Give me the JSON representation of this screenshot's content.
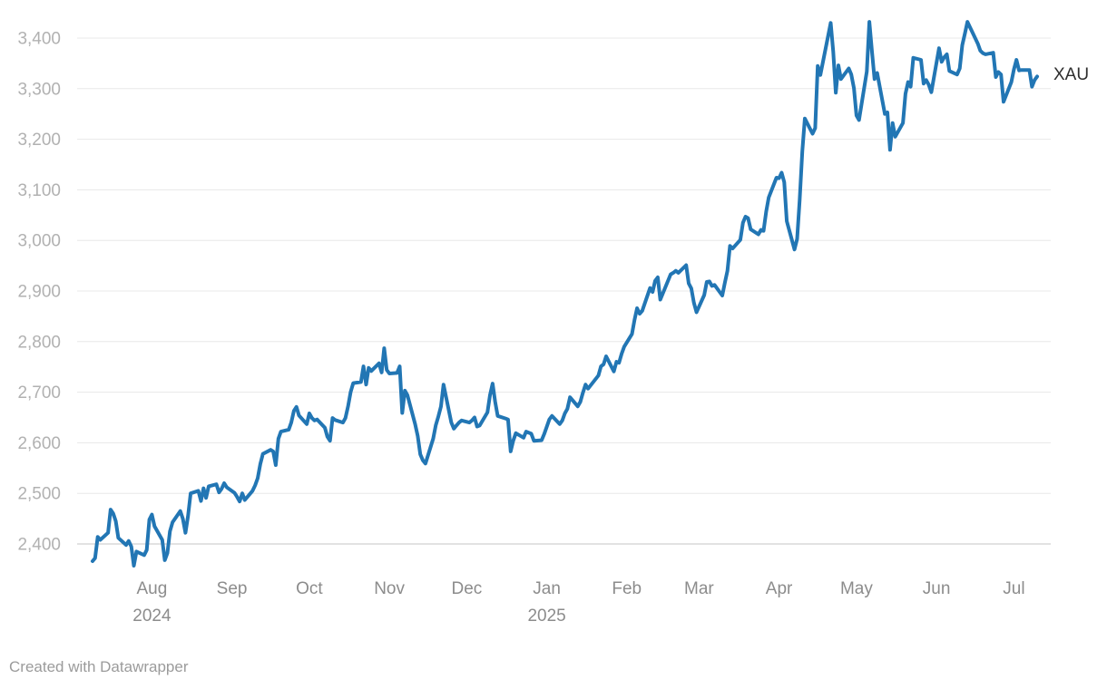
{
  "chart_header": {
    "series_label": "XAU"
  },
  "footer": {
    "credit": "Created with Datawrapper"
  },
  "style": {
    "line_color": "#2276b4",
    "grid_color": "#e8e8e8",
    "baseline_color": "#c6c6c6",
    "ytick_color": "#b1b1b1",
    "xtick_color": "#8c8c8c",
    "series_label_color": "#2d2d2d",
    "footer_color": "#9b9b9b"
  },
  "chart_data": {
    "type": "line",
    "title": "",
    "xlabel": "",
    "ylabel": "",
    "grid": "horizontal",
    "legend_position": "end-of-line",
    "ylim": [
      2350,
      3450
    ],
    "yticks": [
      2400,
      2500,
      2600,
      2700,
      2800,
      2900,
      3000,
      3100,
      3200,
      3300,
      3400
    ],
    "x_range": [
      "2024-07-09",
      "2025-07-10"
    ],
    "month_ticks": [
      {
        "label": "Aug",
        "date": "2024-08-01",
        "year": "2024"
      },
      {
        "label": "Sep",
        "date": "2024-09-01"
      },
      {
        "label": "Oct",
        "date": "2024-10-01"
      },
      {
        "label": "Nov",
        "date": "2024-11-01"
      },
      {
        "label": "Dec",
        "date": "2024-12-01"
      },
      {
        "label": "Jan",
        "date": "2025-01-01",
        "year": "2025"
      },
      {
        "label": "Feb",
        "date": "2025-02-01"
      },
      {
        "label": "Mar",
        "date": "2025-03-01"
      },
      {
        "label": "Apr",
        "date": "2025-04-01"
      },
      {
        "label": "May",
        "date": "2025-05-01"
      },
      {
        "label": "Jun",
        "date": "2025-06-01"
      },
      {
        "label": "Jul",
        "date": "2025-07-01"
      }
    ],
    "series": [
      {
        "name": "XAU",
        "points": [
          [
            "2024-07-09",
            2366
          ],
          [
            "2024-07-10",
            2372
          ],
          [
            "2024-07-11",
            2414
          ],
          [
            "2024-07-12",
            2408
          ],
          [
            "2024-07-15",
            2422
          ],
          [
            "2024-07-16",
            2468
          ],
          [
            "2024-07-17",
            2460
          ],
          [
            "2024-07-18",
            2445
          ],
          [
            "2024-07-19",
            2412
          ],
          [
            "2024-07-22",
            2398
          ],
          [
            "2024-07-23",
            2406
          ],
          [
            "2024-07-24",
            2395
          ],
          [
            "2024-07-25",
            2357
          ],
          [
            "2024-07-26",
            2385
          ],
          [
            "2024-07-29",
            2378
          ],
          [
            "2024-07-30",
            2388
          ],
          [
            "2024-07-31",
            2448
          ],
          [
            "2024-08-01",
            2458
          ],
          [
            "2024-08-02",
            2435
          ],
          [
            "2024-08-05",
            2408
          ],
          [
            "2024-08-06",
            2368
          ],
          [
            "2024-08-07",
            2382
          ],
          [
            "2024-08-08",
            2425
          ],
          [
            "2024-08-09",
            2443
          ],
          [
            "2024-08-12",
            2465
          ],
          [
            "2024-08-13",
            2450
          ],
          [
            "2024-08-14",
            2422
          ],
          [
            "2024-08-15",
            2455
          ],
          [
            "2024-08-16",
            2500
          ],
          [
            "2024-08-19",
            2505
          ],
          [
            "2024-08-20",
            2485
          ],
          [
            "2024-08-21",
            2510
          ],
          [
            "2024-08-22",
            2491
          ],
          [
            "2024-08-23",
            2514
          ],
          [
            "2024-08-26",
            2518
          ],
          [
            "2024-08-27",
            2502
          ],
          [
            "2024-08-28",
            2509
          ],
          [
            "2024-08-29",
            2520
          ],
          [
            "2024-08-30",
            2512
          ],
          [
            "2024-09-02",
            2501
          ],
          [
            "2024-09-03",
            2493
          ],
          [
            "2024-09-04",
            2484
          ],
          [
            "2024-09-05",
            2500
          ],
          [
            "2024-09-06",
            2487
          ],
          [
            "2024-09-09",
            2505
          ],
          [
            "2024-09-10",
            2516
          ],
          [
            "2024-09-11",
            2530
          ],
          [
            "2024-09-12",
            2558
          ],
          [
            "2024-09-13",
            2578
          ],
          [
            "2024-09-16",
            2586
          ],
          [
            "2024-09-17",
            2583
          ],
          [
            "2024-09-18",
            2556
          ],
          [
            "2024-09-19",
            2608
          ],
          [
            "2024-09-20",
            2622
          ],
          [
            "2024-09-23",
            2626
          ],
          [
            "2024-09-24",
            2640
          ],
          [
            "2024-09-25",
            2663
          ],
          [
            "2024-09-26",
            2671
          ],
          [
            "2024-09-27",
            2654
          ],
          [
            "2024-09-30",
            2637
          ],
          [
            "2024-10-01",
            2658
          ],
          [
            "2024-10-02",
            2649
          ],
          [
            "2024-10-03",
            2644
          ],
          [
            "2024-10-04",
            2646
          ],
          [
            "2024-10-07",
            2630
          ],
          [
            "2024-10-08",
            2612
          ],
          [
            "2024-10-09",
            2604
          ],
          [
            "2024-10-10",
            2649
          ],
          [
            "2024-10-11",
            2645
          ],
          [
            "2024-10-14",
            2640
          ],
          [
            "2024-10-15",
            2649
          ],
          [
            "2024-10-16",
            2672
          ],
          [
            "2024-10-17",
            2700
          ],
          [
            "2024-10-18",
            2718
          ],
          [
            "2024-10-21",
            2720
          ],
          [
            "2024-10-22",
            2751
          ],
          [
            "2024-10-23",
            2715
          ],
          [
            "2024-10-24",
            2748
          ],
          [
            "2024-10-25",
            2742
          ],
          [
            "2024-10-28",
            2757
          ],
          [
            "2024-10-29",
            2739
          ],
          [
            "2024-10-30",
            2787
          ],
          [
            "2024-10-31",
            2744
          ],
          [
            "2024-11-01",
            2737
          ],
          [
            "2024-11-04",
            2738
          ],
          [
            "2024-11-05",
            2751
          ],
          [
            "2024-11-06",
            2659
          ],
          [
            "2024-11-07",
            2703
          ],
          [
            "2024-11-08",
            2694
          ],
          [
            "2024-11-11",
            2637
          ],
          [
            "2024-11-12",
            2613
          ],
          [
            "2024-11-13",
            2577
          ],
          [
            "2024-11-14",
            2565
          ],
          [
            "2024-11-15",
            2559
          ],
          [
            "2024-11-18",
            2608
          ],
          [
            "2024-11-19",
            2635
          ],
          [
            "2024-11-20",
            2652
          ],
          [
            "2024-11-21",
            2672
          ],
          [
            "2024-11-22",
            2715
          ],
          [
            "2024-11-25",
            2640
          ],
          [
            "2024-11-26",
            2628
          ],
          [
            "2024-11-27",
            2634
          ],
          [
            "2024-11-28",
            2640
          ],
          [
            "2024-11-29",
            2644
          ],
          [
            "2024-12-02",
            2640
          ],
          [
            "2024-12-03",
            2644
          ],
          [
            "2024-12-04",
            2650
          ],
          [
            "2024-12-05",
            2632
          ],
          [
            "2024-12-06",
            2634
          ],
          [
            "2024-12-09",
            2660
          ],
          [
            "2024-12-10",
            2694
          ],
          [
            "2024-12-11",
            2717
          ],
          [
            "2024-12-12",
            2681
          ],
          [
            "2024-12-13",
            2653
          ],
          [
            "2024-12-16",
            2648
          ],
          [
            "2024-12-17",
            2646
          ],
          [
            "2024-12-18",
            2583
          ],
          [
            "2024-12-19",
            2604
          ],
          [
            "2024-12-20",
            2619
          ],
          [
            "2024-12-23",
            2610
          ],
          [
            "2024-12-24",
            2622
          ],
          [
            "2024-12-26",
            2618
          ],
          [
            "2024-12-27",
            2604
          ],
          [
            "2024-12-30",
            2605
          ],
          [
            "2024-12-31",
            2617
          ],
          [
            "2025-01-02",
            2646
          ],
          [
            "2025-01-03",
            2653
          ],
          [
            "2025-01-06",
            2637
          ],
          [
            "2025-01-07",
            2644
          ],
          [
            "2025-01-08",
            2658
          ],
          [
            "2025-01-09",
            2667
          ],
          [
            "2025-01-10",
            2690
          ],
          [
            "2025-01-13",
            2672
          ],
          [
            "2025-01-14",
            2681
          ],
          [
            "2025-01-15",
            2699
          ],
          [
            "2025-01-16",
            2715
          ],
          [
            "2025-01-17",
            2707
          ],
          [
            "2025-01-21",
            2733
          ],
          [
            "2025-01-22",
            2751
          ],
          [
            "2025-01-23",
            2755
          ],
          [
            "2025-01-24",
            2771
          ],
          [
            "2025-01-27",
            2741
          ],
          [
            "2025-01-28",
            2760
          ],
          [
            "2025-01-29",
            2758
          ],
          [
            "2025-01-30",
            2776
          ],
          [
            "2025-01-31",
            2790
          ],
          [
            "2025-02-03",
            2815
          ],
          [
            "2025-02-04",
            2843
          ],
          [
            "2025-02-05",
            2866
          ],
          [
            "2025-02-06",
            2855
          ],
          [
            "2025-02-07",
            2861
          ],
          [
            "2025-02-10",
            2906
          ],
          [
            "2025-02-11",
            2898
          ],
          [
            "2025-02-12",
            2920
          ],
          [
            "2025-02-13",
            2927
          ],
          [
            "2025-02-14",
            2883
          ],
          [
            "2025-02-18",
            2933
          ],
          [
            "2025-02-19",
            2936
          ],
          [
            "2025-02-20",
            2940
          ],
          [
            "2025-02-21",
            2936
          ],
          [
            "2025-02-24",
            2951
          ],
          [
            "2025-02-25",
            2915
          ],
          [
            "2025-02-26",
            2905
          ],
          [
            "2025-02-27",
            2877
          ],
          [
            "2025-02-28",
            2858
          ],
          [
            "2025-03-03",
            2892
          ],
          [
            "2025-03-04",
            2918
          ],
          [
            "2025-03-05",
            2919
          ],
          [
            "2025-03-06",
            2910
          ],
          [
            "2025-03-07",
            2912
          ],
          [
            "2025-03-10",
            2891
          ],
          [
            "2025-03-11",
            2916
          ],
          [
            "2025-03-12",
            2940
          ],
          [
            "2025-03-13",
            2989
          ],
          [
            "2025-03-14",
            2984
          ],
          [
            "2025-03-17",
            3001
          ],
          [
            "2025-03-18",
            3035
          ],
          [
            "2025-03-19",
            3047
          ],
          [
            "2025-03-20",
            3044
          ],
          [
            "2025-03-21",
            3022
          ],
          [
            "2025-03-24",
            3012
          ],
          [
            "2025-03-25",
            3021
          ],
          [
            "2025-03-26",
            3019
          ],
          [
            "2025-03-27",
            3057
          ],
          [
            "2025-03-28",
            3085
          ],
          [
            "2025-03-31",
            3124
          ],
          [
            "2025-04-01",
            3123
          ],
          [
            "2025-04-02",
            3134
          ],
          [
            "2025-04-03",
            3115
          ],
          [
            "2025-04-04",
            3038
          ],
          [
            "2025-04-07",
            2982
          ],
          [
            "2025-04-08",
            3003
          ],
          [
            "2025-04-09",
            3080
          ],
          [
            "2025-04-10",
            3176
          ],
          [
            "2025-04-11",
            3241
          ],
          [
            "2025-04-14",
            3211
          ],
          [
            "2025-04-15",
            3222
          ],
          [
            "2025-04-16",
            3345
          ],
          [
            "2025-04-17",
            3327
          ],
          [
            "2025-04-21",
            3430
          ],
          [
            "2025-04-22",
            3373
          ],
          [
            "2025-04-23",
            3292
          ],
          [
            "2025-04-24",
            3346
          ],
          [
            "2025-04-25",
            3319
          ],
          [
            "2025-04-28",
            3340
          ],
          [
            "2025-04-29",
            3328
          ],
          [
            "2025-04-30",
            3301
          ],
          [
            "2025-05-01",
            3247
          ],
          [
            "2025-05-02",
            3238
          ],
          [
            "2025-05-05",
            3334
          ],
          [
            "2025-05-06",
            3432
          ],
          [
            "2025-05-07",
            3373
          ],
          [
            "2025-05-08",
            3319
          ],
          [
            "2025-05-09",
            3331
          ],
          [
            "2025-05-12",
            3250
          ],
          [
            "2025-05-13",
            3253
          ],
          [
            "2025-05-14",
            3179
          ],
          [
            "2025-05-15",
            3232
          ],
          [
            "2025-05-16",
            3205
          ],
          [
            "2025-05-19",
            3232
          ],
          [
            "2025-05-20",
            3290
          ],
          [
            "2025-05-21",
            3313
          ],
          [
            "2025-05-22",
            3304
          ],
          [
            "2025-05-23",
            3361
          ],
          [
            "2025-05-26",
            3357
          ],
          [
            "2025-05-27",
            3310
          ],
          [
            "2025-05-28",
            3317
          ],
          [
            "2025-05-29",
            3308
          ],
          [
            "2025-05-30",
            3293
          ],
          [
            "2025-06-02",
            3380
          ],
          [
            "2025-06-03",
            3353
          ],
          [
            "2025-06-04",
            3362
          ],
          [
            "2025-06-05",
            3368
          ],
          [
            "2025-06-06",
            3335
          ],
          [
            "2025-06-09",
            3328
          ],
          [
            "2025-06-10",
            3340
          ],
          [
            "2025-06-11",
            3386
          ],
          [
            "2025-06-12",
            3409
          ],
          [
            "2025-06-13",
            3432
          ],
          [
            "2025-06-16",
            3400
          ],
          [
            "2025-06-17",
            3389
          ],
          [
            "2025-06-18",
            3375
          ],
          [
            "2025-06-19",
            3370
          ],
          [
            "2025-06-20",
            3368
          ],
          [
            "2025-06-23",
            3371
          ],
          [
            "2025-06-24",
            3323
          ],
          [
            "2025-06-25",
            3333
          ],
          [
            "2025-06-26",
            3328
          ],
          [
            "2025-06-27",
            3274
          ],
          [
            "2025-06-30",
            3313
          ],
          [
            "2025-07-01",
            3338
          ],
          [
            "2025-07-02",
            3357
          ],
          [
            "2025-07-03",
            3336
          ],
          [
            "2025-07-04",
            3337
          ],
          [
            "2025-07-07",
            3337
          ],
          [
            "2025-07-08",
            3304
          ],
          [
            "2025-07-09",
            3317
          ],
          [
            "2025-07-10",
            3324
          ]
        ]
      }
    ]
  }
}
